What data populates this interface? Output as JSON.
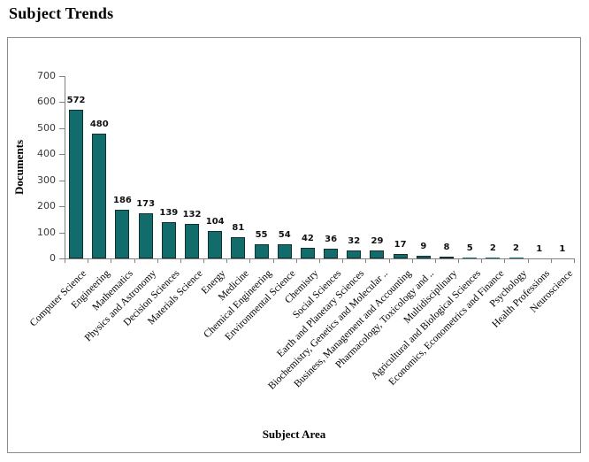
{
  "page": {
    "title": "Subject Trends"
  },
  "chart_data": {
    "type": "bar",
    "title": "Subject Trends",
    "xlabel": "Subject Area",
    "ylabel": "Documents",
    "categories": [
      "Computer Science",
      "Engineering",
      "Mathematics",
      "Physics and Astronomy",
      "Decision Sciences",
      "Materials Science",
      "Energy",
      "Medicine",
      "Chemical Engineering",
      "Environmental Science",
      "Chemistry",
      "Social Sciences",
      "Earth and Planetary Sciences",
      "Biochemistry, Genetics and Molecular ..",
      "Business, Management and Accounting",
      "Pharmacology, Toxicology and ..",
      "Multidisciplinary",
      "Agricultural and Biological Sciences",
      "Economics, Econometrics and Finance",
      "Psychology",
      "Health Professions",
      "Neuroscience"
    ],
    "values": [
      572,
      480,
      186,
      173,
      139,
      132,
      104,
      81,
      55,
      54,
      42,
      36,
      32,
      29,
      17,
      9,
      8,
      5,
      2,
      2,
      1,
      1
    ],
    "data_labels_shown": true,
    "ylim": [
      0,
      700
    ],
    "yticks": [
      0,
      100,
      200,
      300,
      400,
      500,
      600,
      700
    ],
    "grid": false,
    "legend": "none",
    "colors": {
      "bar_fill": "#116c6b",
      "bar_border": "#0e3331",
      "axis_line": "#808080",
      "frame_border": "#8c8c8c",
      "tick_label": "#3a3a3a",
      "text": "#000000"
    }
  }
}
